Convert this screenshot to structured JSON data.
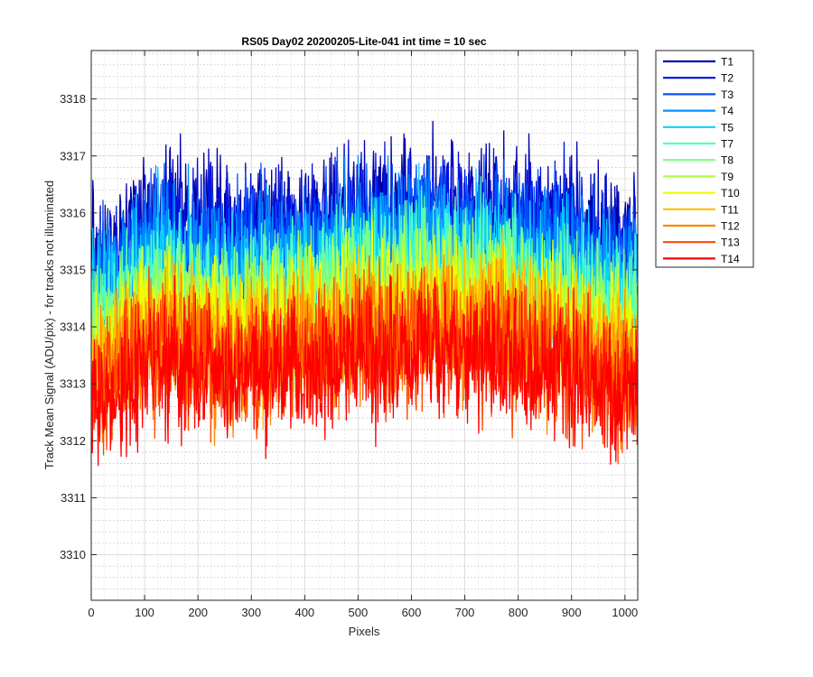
{
  "chart_data": {
    "type": "line",
    "title": "RS05 Day02 20200205-Lite-041 int time = 10 sec",
    "xlabel": "Pixels",
    "ylabel": "Track Mean Signal (ADU/pix) - for tracks not illuminated",
    "xlim": [
      0,
      1024
    ],
    "ylim": [
      3309.2,
      3318.85
    ],
    "x_ticks": [
      0,
      100,
      200,
      300,
      400,
      500,
      600,
      700,
      800,
      900,
      1000
    ],
    "y_ticks": [
      3310,
      3311,
      3312,
      3313,
      3314,
      3315,
      3316,
      3317,
      3318
    ],
    "grid": "major and minor",
    "legend_position": "outside top-right",
    "x_points": 1024,
    "series": [
      {
        "name": "T1",
        "color": "#0000a8",
        "center_profile": [
          3315.0,
          3316.0,
          3315.7,
          3315.8,
          3316.0,
          3316.1,
          3316.0,
          3315.8,
          3315.4
        ],
        "noise_amplitude": 1.8
      },
      {
        "name": "T2",
        "color": "#0010e0",
        "center_profile": [
          3314.8,
          3315.8,
          3315.5,
          3315.6,
          3315.8,
          3315.9,
          3315.8,
          3315.6,
          3315.2
        ],
        "noise_amplitude": 1.8
      },
      {
        "name": "T3",
        "color": "#0050ff",
        "center_profile": [
          3314.6,
          3315.6,
          3315.3,
          3315.4,
          3315.6,
          3315.7,
          3315.6,
          3315.4,
          3315.0
        ],
        "noise_amplitude": 1.8
      },
      {
        "name": "T4",
        "color": "#0090ff",
        "center_profile": [
          3314.4,
          3315.3,
          3315.0,
          3315.1,
          3315.4,
          3315.5,
          3315.4,
          3315.1,
          3314.7
        ],
        "noise_amplitude": 1.8
      },
      {
        "name": "T5",
        "color": "#10d0ff",
        "center_profile": [
          3314.2,
          3315.1,
          3314.8,
          3314.9,
          3315.1,
          3315.2,
          3315.1,
          3314.9,
          3314.5
        ],
        "noise_amplitude": 1.8
      },
      {
        "name": "T7",
        "color": "#50ffc0",
        "center_profile": [
          3314.0,
          3314.8,
          3314.5,
          3314.6,
          3314.9,
          3315.0,
          3314.9,
          3314.6,
          3314.2
        ],
        "noise_amplitude": 1.8
      },
      {
        "name": "T8",
        "color": "#80ff80",
        "center_profile": [
          3313.8,
          3314.6,
          3314.3,
          3314.4,
          3314.7,
          3314.8,
          3314.7,
          3314.4,
          3314.0
        ],
        "noise_amplitude": 1.8
      },
      {
        "name": "T9",
        "color": "#b0ff40",
        "center_profile": [
          3313.6,
          3314.4,
          3314.1,
          3314.2,
          3314.5,
          3314.6,
          3314.5,
          3314.2,
          3313.8
        ],
        "noise_amplitude": 1.8
      },
      {
        "name": "T10",
        "color": "#f0ff00",
        "center_profile": [
          3313.4,
          3314.2,
          3313.9,
          3314.0,
          3314.3,
          3314.4,
          3314.3,
          3314.0,
          3313.6
        ],
        "noise_amplitude": 1.8
      },
      {
        "name": "T11",
        "color": "#ffc000",
        "center_profile": [
          3313.2,
          3314.0,
          3313.7,
          3313.8,
          3314.1,
          3314.2,
          3314.1,
          3313.8,
          3313.4
        ],
        "noise_amplitude": 1.8
      },
      {
        "name": "T12",
        "color": "#ff8800",
        "center_profile": [
          3313.0,
          3313.8,
          3313.5,
          3313.6,
          3313.9,
          3314.0,
          3313.9,
          3313.6,
          3313.2
        ],
        "noise_amplitude": 1.8
      },
      {
        "name": "T13",
        "color": "#ff4800",
        "center_profile": [
          3312.8,
          3313.6,
          3313.3,
          3313.4,
          3313.7,
          3313.8,
          3313.7,
          3313.4,
          3313.0
        ],
        "noise_amplitude": 1.8
      },
      {
        "name": "T14",
        "color": "#ff0000",
        "center_profile": [
          3312.6,
          3313.4,
          3313.1,
          3313.2,
          3313.5,
          3313.6,
          3313.5,
          3313.2,
          3312.8
        ],
        "noise_amplitude": 1.8
      }
    ]
  }
}
